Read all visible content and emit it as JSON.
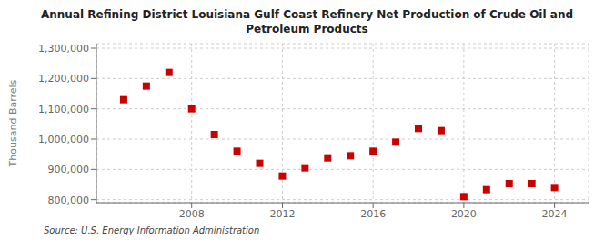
{
  "chart_data": {
    "type": "scatter",
    "title": "Annual Refining District Louisiana Gulf Coast Refinery Net Production of Crude Oil and\nPetroleum Products",
    "y_label": "Thousand Barrels",
    "annotations": [
      "Source: U.S. Energy Information Administration"
    ],
    "x": [
      2005,
      2006,
      2007,
      2008,
      2009,
      2010,
      2011,
      2012,
      2013,
      2014,
      2015,
      2016,
      2017,
      2018,
      2019,
      2020,
      2021,
      2022,
      2023,
      2024
    ],
    "values": [
      1130000,
      1175000,
      1220000,
      1100000,
      1015000,
      960000,
      920000,
      878000,
      905000,
      938000,
      945000,
      960000,
      990000,
      1035000,
      1028000,
      810000,
      833000,
      853000,
      853000,
      840000
    ],
    "color": "#cc0000",
    "marker": "square",
    "xlim": [
      2003.8,
      2025.5
    ],
    "ylim": [
      790000,
      1315000
    ],
    "xticks": [
      2008,
      2012,
      2016,
      2020,
      2024
    ],
    "yticks": [
      {
        "value": 800000,
        "label": "800,000"
      },
      {
        "value": 900000,
        "label": "900,000"
      },
      {
        "value": 1000000,
        "label": "1,000,000"
      },
      {
        "value": 1100000,
        "label": "1,100,000"
      },
      {
        "value": 1200000,
        "label": "1,200,000"
      },
      {
        "value": 1300000,
        "label": "1,300,000"
      }
    ],
    "grid": true
  }
}
